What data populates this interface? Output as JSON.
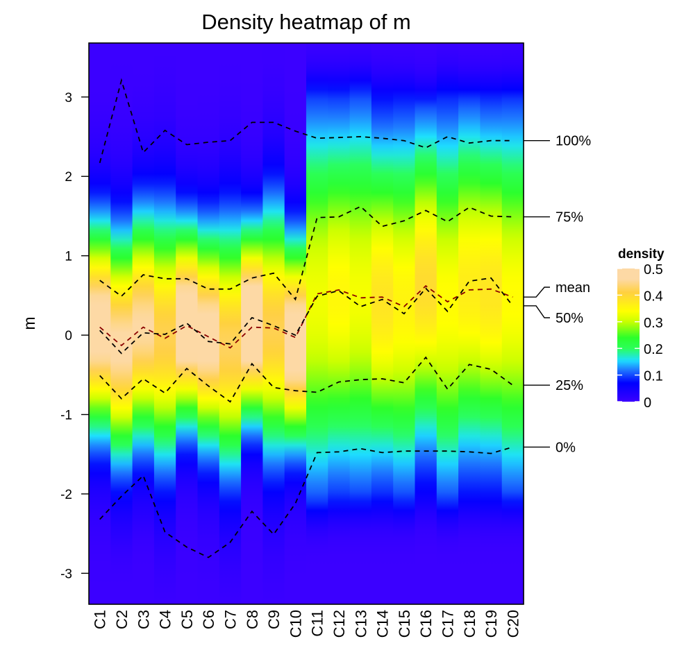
{
  "chart_data": {
    "type": "heatmap",
    "title": "Density heatmap of m",
    "xlabel": "",
    "ylabel": "m",
    "ylim": [
      -3.39,
      3.68
    ],
    "yticks": [
      3,
      2,
      1,
      0,
      -1,
      -2,
      -3
    ],
    "ytick_labels": [
      "3",
      "2",
      "1",
      "0",
      "-1",
      "-2",
      "-3"
    ],
    "categories": [
      "C1",
      "C2",
      "C3",
      "C4",
      "C5",
      "C6",
      "C7",
      "C8",
      "C9",
      "C10",
      "C11",
      "C12",
      "C13",
      "C14",
      "C15",
      "C16",
      "C17",
      "C18",
      "C19",
      "C20"
    ],
    "series": [
      {
        "name": "100%",
        "label": "100%",
        "style": "dashed",
        "color": "#000000",
        "values": [
          2.17,
          3.21,
          2.3,
          2.58,
          2.4,
          2.43,
          2.45,
          2.68,
          2.68,
          2.57,
          2.48,
          2.49,
          2.5,
          2.48,
          2.45,
          2.36,
          2.5,
          2.42,
          2.45,
          2.45
        ]
      },
      {
        "name": "75%",
        "label": "75%",
        "style": "dashed",
        "color": "#000000",
        "values": [
          0.69,
          0.49,
          0.76,
          0.71,
          0.71,
          0.58,
          0.58,
          0.72,
          0.78,
          0.45,
          1.48,
          1.49,
          1.62,
          1.37,
          1.44,
          1.57,
          1.43,
          1.61,
          1.5,
          1.49
        ]
      },
      {
        "name": "mean",
        "label": "mean",
        "style": "dashed",
        "color": "#8B0000",
        "values": [
          0.1,
          -0.13,
          0.1,
          -0.04,
          0.12,
          -0.02,
          -0.16,
          0.1,
          0.09,
          -0.03,
          0.52,
          0.57,
          0.47,
          0.48,
          0.36,
          0.62,
          0.42,
          0.57,
          0.58,
          0.48
        ]
      },
      {
        "name": "50%",
        "label": "50%",
        "style": "dashed",
        "color": "#000000",
        "values": [
          0.06,
          -0.23,
          0.03,
          0.01,
          0.15,
          -0.08,
          -0.11,
          0.22,
          0.12,
          0.0,
          0.49,
          0.56,
          0.36,
          0.45,
          0.27,
          0.59,
          0.3,
          0.68,
          0.72,
          0.37
        ]
      },
      {
        "name": "25%",
        "label": "25%",
        "style": "dashed",
        "color": "#000000",
        "values": [
          -0.51,
          -0.8,
          -0.55,
          -0.73,
          -0.42,
          -0.64,
          -0.84,
          -0.36,
          -0.66,
          -0.7,
          -0.72,
          -0.59,
          -0.56,
          -0.55,
          -0.6,
          -0.28,
          -0.68,
          -0.37,
          -0.43,
          -0.63
        ]
      },
      {
        "name": "0%",
        "label": "0%",
        "style": "dashed",
        "color": "#000000",
        "values": [
          -2.32,
          -2.03,
          -1.77,
          -2.48,
          -2.67,
          -2.8,
          -2.61,
          -2.22,
          -2.51,
          -2.12,
          -1.48,
          -1.47,
          -1.43,
          -1.48,
          -1.46,
          -1.46,
          -1.46,
          -1.47,
          -1.49,
          -1.41
        ]
      }
    ],
    "legend": {
      "title": "density",
      "position": "right",
      "range": [
        0,
        0.5
      ],
      "ticks": [
        0.5,
        0.4,
        0.3,
        0.2,
        0.1,
        0
      ],
      "tick_labels": [
        "0.5",
        "0.4",
        "0.3",
        "0.2",
        "0.1",
        "0"
      ],
      "colors": [
        {
          "value": 0.0,
          "color": "#3B00FF"
        },
        {
          "value": 0.07,
          "color": "#0000FF"
        },
        {
          "value": 0.12,
          "color": "#1F7BFF"
        },
        {
          "value": 0.155,
          "color": "#1EE0FF"
        },
        {
          "value": 0.2,
          "color": "#2BFF5A"
        },
        {
          "value": 0.24,
          "color": "#2BFF2B"
        },
        {
          "value": 0.3,
          "color": "#C8FF00"
        },
        {
          "value": 0.34,
          "color": "#FFFF00"
        },
        {
          "value": 0.41,
          "color": "#FFD040"
        },
        {
          "value": 0.46,
          "color": "#FDD9A5"
        },
        {
          "value": 0.5,
          "color": "#FDD9A5"
        }
      ]
    },
    "grid": false
  }
}
